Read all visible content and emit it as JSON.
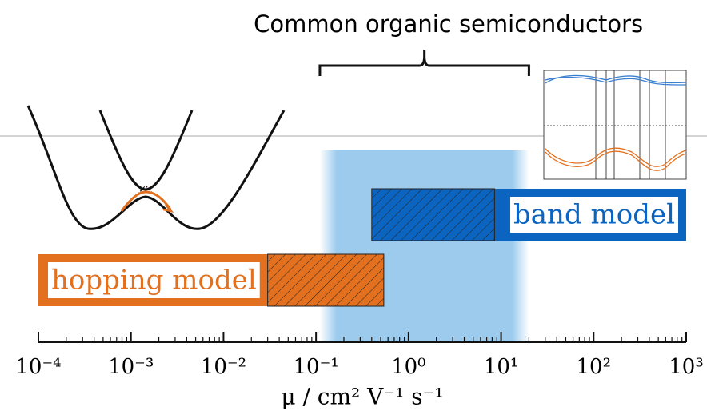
{
  "axis": {
    "scale": "log",
    "lim": [
      0.0001,
      1000
    ],
    "ticks": [
      {
        "value": 0.0001,
        "label": "10⁻⁴"
      },
      {
        "value": 0.001,
        "label": "10⁻³"
      },
      {
        "value": 0.01,
        "label": "10⁻²"
      },
      {
        "value": 0.1,
        "label": "10⁻¹"
      },
      {
        "value": 1,
        "label": "10⁰"
      },
      {
        "value": 10,
        "label": "10¹"
      },
      {
        "value": 100,
        "label": "10²"
      },
      {
        "value": 1000,
        "label": "10³"
      }
    ],
    "minor_ticks": [
      0.0002,
      0.0003,
      0.0004,
      0.0005,
      0.0006,
      0.0007,
      0.0008,
      0.0009,
      0.002,
      0.003,
      0.004,
      0.005,
      0.006,
      0.007,
      0.008,
      0.009,
      0.02,
      0.03,
      0.04,
      0.05,
      0.06,
      0.07,
      0.08,
      0.09,
      0.2,
      0.3,
      0.4,
      0.5,
      0.6,
      0.7,
      0.8,
      0.9,
      2,
      3,
      4,
      5,
      6,
      7,
      8,
      9,
      20,
      30,
      40,
      50,
      60,
      70,
      80,
      90,
      200,
      300,
      400,
      500,
      600,
      700,
      800,
      900
    ],
    "label": "μ / cm² V⁻¹ s⁻¹"
  },
  "highlight": {
    "label": "Common organic semiconductors",
    "range": [
      0.11,
      20
    ],
    "color": "#9ccbee"
  },
  "ranges": [
    {
      "label": "hopping model",
      "color": "#e2701e",
      "range": [
        0.0001,
        0.54
      ],
      "hatched": [
        0.03,
        0.54
      ]
    },
    {
      "label": "band model",
      "color": "#0b64c0",
      "range": [
        0.4,
        1000
      ],
      "hatched": [
        0.4,
        8.5
      ]
    }
  ]
}
